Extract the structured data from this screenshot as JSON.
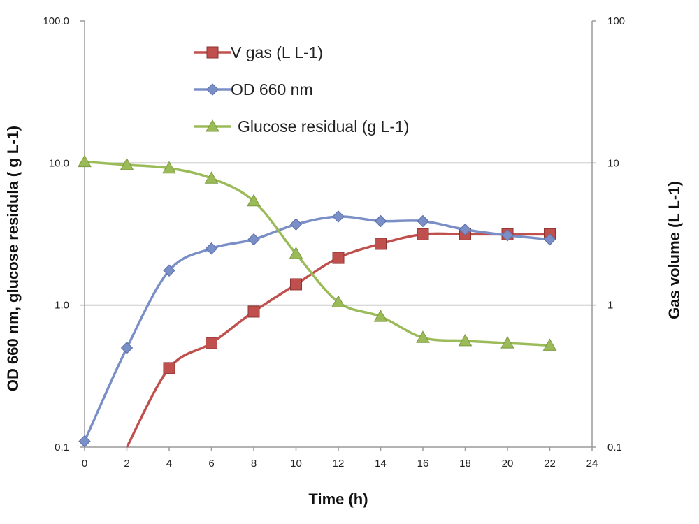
{
  "chart_data": {
    "type": "line",
    "xlabel": "Time (h)",
    "ylabel": "OD 660 nm, glucose residula ( g L-1)",
    "y2label": "Gas volume (L L-1)",
    "xlim": [
      0,
      24
    ],
    "xticks": [
      "0",
      "2",
      "4",
      "6",
      "8",
      "10",
      "12",
      "14",
      "16",
      "18",
      "20",
      "22",
      "24"
    ],
    "ylim": [
      0.1,
      100
    ],
    "yscale": "log",
    "yticks": [
      "0.1",
      "1.0",
      "10.0",
      "100.0"
    ],
    "y2lim": [
      0.1,
      100
    ],
    "y2scale": "log",
    "y2ticks": [
      "0.1",
      "1",
      "10",
      "100"
    ],
    "grid": "horizontal",
    "legend_position": "top-left",
    "series": [
      {
        "name": "V gas (L L-1)",
        "axis": "right",
        "color": "#c0504d",
        "marker": "square",
        "x": [
          2,
          4,
          6,
          8,
          10,
          12,
          14,
          16,
          18,
          20,
          22
        ],
        "y": [
          0.1,
          0.36,
          0.54,
          0.9,
          1.4,
          2.15,
          2.7,
          3.15,
          3.15,
          3.15,
          3.15
        ]
      },
      {
        "name": "OD 660 nm",
        "axis": "left",
        "color": "#7b8fc7",
        "marker": "diamond",
        "x": [
          0,
          2,
          4,
          6,
          8,
          10,
          12,
          14,
          16,
          18,
          20,
          22
        ],
        "y": [
          0.11,
          0.5,
          1.75,
          2.5,
          2.9,
          3.7,
          4.2,
          3.9,
          3.9,
          3.4,
          3.1,
          2.9
        ]
      },
      {
        "name": "Glucose residual (g L-1)",
        "axis": "left",
        "color": "#9bbb59",
        "marker": "triangle",
        "x": [
          0,
          2,
          4,
          6,
          8,
          10,
          12,
          14,
          16,
          18,
          20,
          22
        ],
        "y": [
          10.2,
          9.7,
          9.2,
          7.8,
          5.4,
          2.3,
          1.05,
          0.83,
          0.59,
          0.56,
          0.54,
          0.52
        ]
      }
    ]
  }
}
